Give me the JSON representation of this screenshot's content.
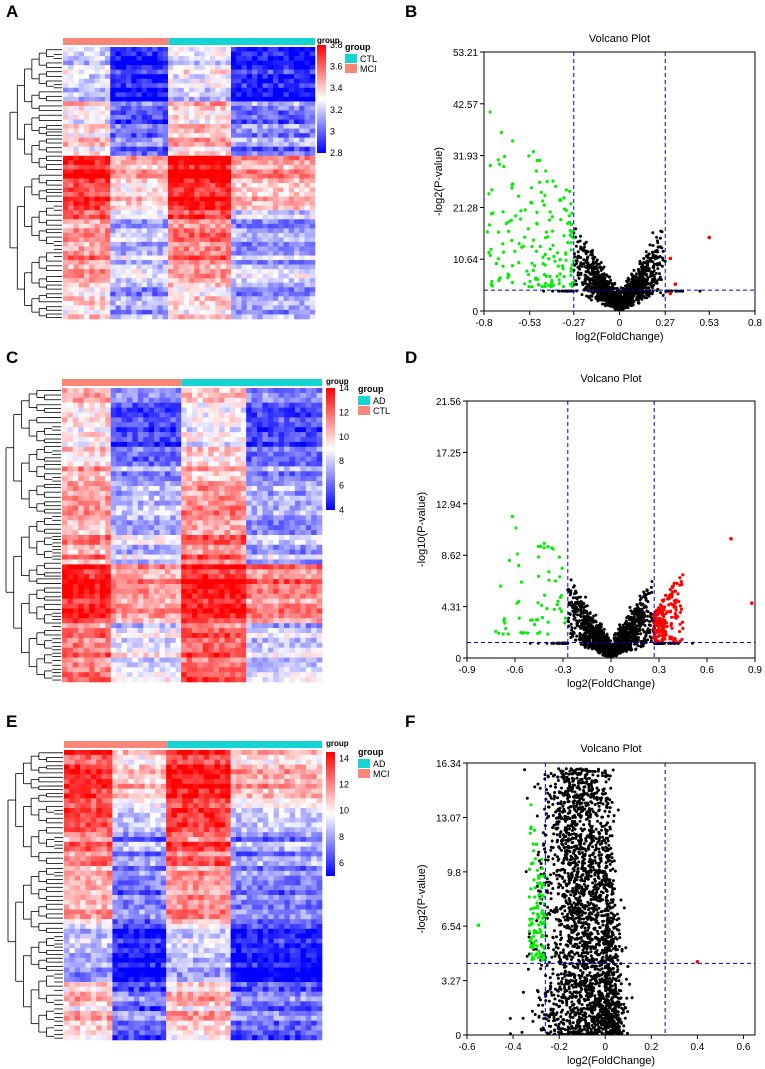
{
  "figure": {
    "panel_labels": [
      "A",
      "B",
      "C",
      "D",
      "E",
      "F"
    ]
  },
  "colors": {
    "heat_red": "#ff0000",
    "heat_white": "#ffffff",
    "heat_blue": "#0000ff",
    "group_salmon": "#f8877a",
    "group_cyan": "#17d4d4",
    "sig_green": "#00ee00",
    "sig_red": "#ff0000",
    "nonsig_black": "#000000",
    "threshold_line": "#0000cc"
  },
  "chart_data": [
    {
      "panel": "A",
      "type": "heatmap",
      "title": "",
      "group_bar": [
        {
          "label": "MCI",
          "fraction": 0.42
        },
        {
          "label": "CTL",
          "fraction": 0.58
        }
      ],
      "legend_title": "group",
      "legend_entries": [
        {
          "label": "CTL",
          "color": "#17d4d4"
        },
        {
          "label": "MCI",
          "color": "#f8877a"
        }
      ],
      "colorbar_min": 2.8,
      "colorbar_max": 3.8,
      "colorbar_ticks": [
        "3.8",
        "3.6",
        "3.4",
        "3.2",
        "3",
        "2.8"
      ],
      "block_pattern": [
        [
          -0.2,
          -0.9,
          -0.1,
          -0.9
        ],
        [
          0.1,
          -0.6,
          0.2,
          -0.5
        ],
        [
          0.9,
          0.3,
          1.0,
          0.4
        ],
        [
          0.5,
          -0.2,
          0.6,
          -0.3
        ],
        [
          0.2,
          -0.3,
          0.2,
          -0.3
        ]
      ]
    },
    {
      "panel": "B",
      "type": "scatter",
      "title": "Volcano Plot",
      "xlabel": "log2(FoldChange)",
      "ylabel": "-log2(P-value)",
      "xlim": [
        -0.8,
        0.8
      ],
      "ylim": [
        0,
        53.21
      ],
      "xticks": [
        "-0.8",
        "-0.53",
        "-0.27",
        "0",
        "0.27",
        "0.53",
        "0.8"
      ],
      "yticks": [
        "0",
        "10.64",
        "21.28",
        "31.93",
        "42.57",
        "53.21"
      ],
      "fc_threshold": 0.27,
      "p_threshold": 4.3,
      "cloud": {
        "n": 1500,
        "y_max": 20,
        "spread": 0.22,
        "slope": 55
      },
      "green_points": {
        "n": 170,
        "x_range": [
          -0.78,
          -0.27
        ],
        "y_range": [
          5,
          43
        ]
      },
      "red_points": [
        [
          0.53,
          15.1
        ],
        [
          0.3,
          10.8
        ],
        [
          0.33,
          5.5
        ],
        [
          0.3,
          3.6
        ]
      ]
    },
    {
      "panel": "C",
      "type": "heatmap",
      "title": "",
      "group_bar": [
        {
          "label": "CTL",
          "fraction": 0.46
        },
        {
          "label": "AD",
          "fraction": 0.54
        }
      ],
      "legend_title": "group",
      "legend_entries": [
        {
          "label": "AD",
          "color": "#17d4d4"
        },
        {
          "label": "CTL",
          "color": "#f8877a"
        }
      ],
      "colorbar_min": 4,
      "colorbar_max": 14,
      "colorbar_ticks": [
        "14",
        "12",
        "10",
        "8",
        "6",
        "4"
      ],
      "block_pattern": [
        [
          0.2,
          -0.6,
          0.1,
          -0.6
        ],
        [
          0.3,
          -0.4,
          0.3,
          -0.4
        ],
        [
          0.4,
          -0.2,
          0.5,
          -0.3
        ],
        [
          0.9,
          0.4,
          0.9,
          0.5
        ],
        [
          0.5,
          -0.1,
          0.6,
          -0.2
        ]
      ]
    },
    {
      "panel": "D",
      "type": "scatter",
      "title": "Volcano Plot",
      "xlabel": "log2(FoldChange)",
      "ylabel": "-log10(P-value)",
      "xlim": [
        -0.9,
        0.9
      ],
      "ylim": [
        0,
        21.56
      ],
      "xticks": [
        "-0.9",
        "-0.6",
        "-0.3",
        "0",
        "0.3",
        "0.6",
        "0.9"
      ],
      "yticks": [
        "0",
        "4.31",
        "8.62",
        "12.94",
        "17.25",
        "21.56"
      ],
      "fc_threshold": 0.27,
      "p_threshold": 1.3,
      "cloud": {
        "n": 1500,
        "y_max": 7,
        "spread": 0.26,
        "slope": 22
      },
      "green_points": {
        "n": 60,
        "x_range": [
          -0.72,
          -0.27
        ],
        "y_range": [
          2,
          14
        ]
      },
      "red_extra": {
        "n": 200,
        "x_range": [
          0.27,
          0.45
        ],
        "y_range": [
          1.3,
          7.5
        ]
      },
      "red_points": [
        [
          0.75,
          10
        ],
        [
          0.88,
          4.6
        ]
      ]
    },
    {
      "panel": "E",
      "type": "heatmap",
      "title": "",
      "group_bar": [
        {
          "label": "MCI",
          "fraction": 0.4
        },
        {
          "label": "AD",
          "fraction": 0.6
        }
      ],
      "legend_title": "group",
      "legend_entries": [
        {
          "label": "AD",
          "color": "#17d4d4"
        },
        {
          "label": "MCI",
          "color": "#f8877a"
        }
      ],
      "colorbar_min": 5,
      "colorbar_max": 14.5,
      "colorbar_ticks": [
        "14",
        "12",
        "10",
        "8",
        "6"
      ],
      "block_pattern": [
        [
          0.8,
          0.2,
          0.9,
          0.3
        ],
        [
          0.5,
          -0.4,
          0.6,
          -0.4
        ],
        [
          0.3,
          -0.5,
          0.4,
          -0.5
        ],
        [
          -0.3,
          -0.9,
          -0.2,
          -0.9
        ],
        [
          0.2,
          -0.6,
          0.2,
          -0.6
        ]
      ]
    },
    {
      "panel": "F",
      "type": "scatter",
      "title": "Volcano Plot",
      "xlabel": "log2(FoldChange)",
      "ylabel": "-log2(P-value)",
      "xlim": [
        -0.6,
        0.65
      ],
      "ylim": [
        0,
        16.34
      ],
      "xticks": [
        "-0.6",
        "-0.4",
        "-0.2",
        "0",
        "0.2",
        "0.4",
        "0.6"
      ],
      "yticks": [
        "0",
        "3.27",
        "6.54",
        "9.8",
        "13.07",
        "16.34"
      ],
      "fc_threshold": 0.26,
      "p_threshold": 4.3,
      "cloud": {
        "n": 2500,
        "y_max": 16,
        "spread": 0.2,
        "slope": 0,
        "skew": -0.12
      },
      "green_points": {
        "n": 110,
        "x_range": [
          -0.33,
          -0.26
        ],
        "y_range": [
          4.5,
          14.5
        ]
      },
      "red_points": [
        [
          0.4,
          4.4
        ]
      ],
      "extra_green": [
        [
          -0.55,
          6.6
        ]
      ]
    }
  ]
}
